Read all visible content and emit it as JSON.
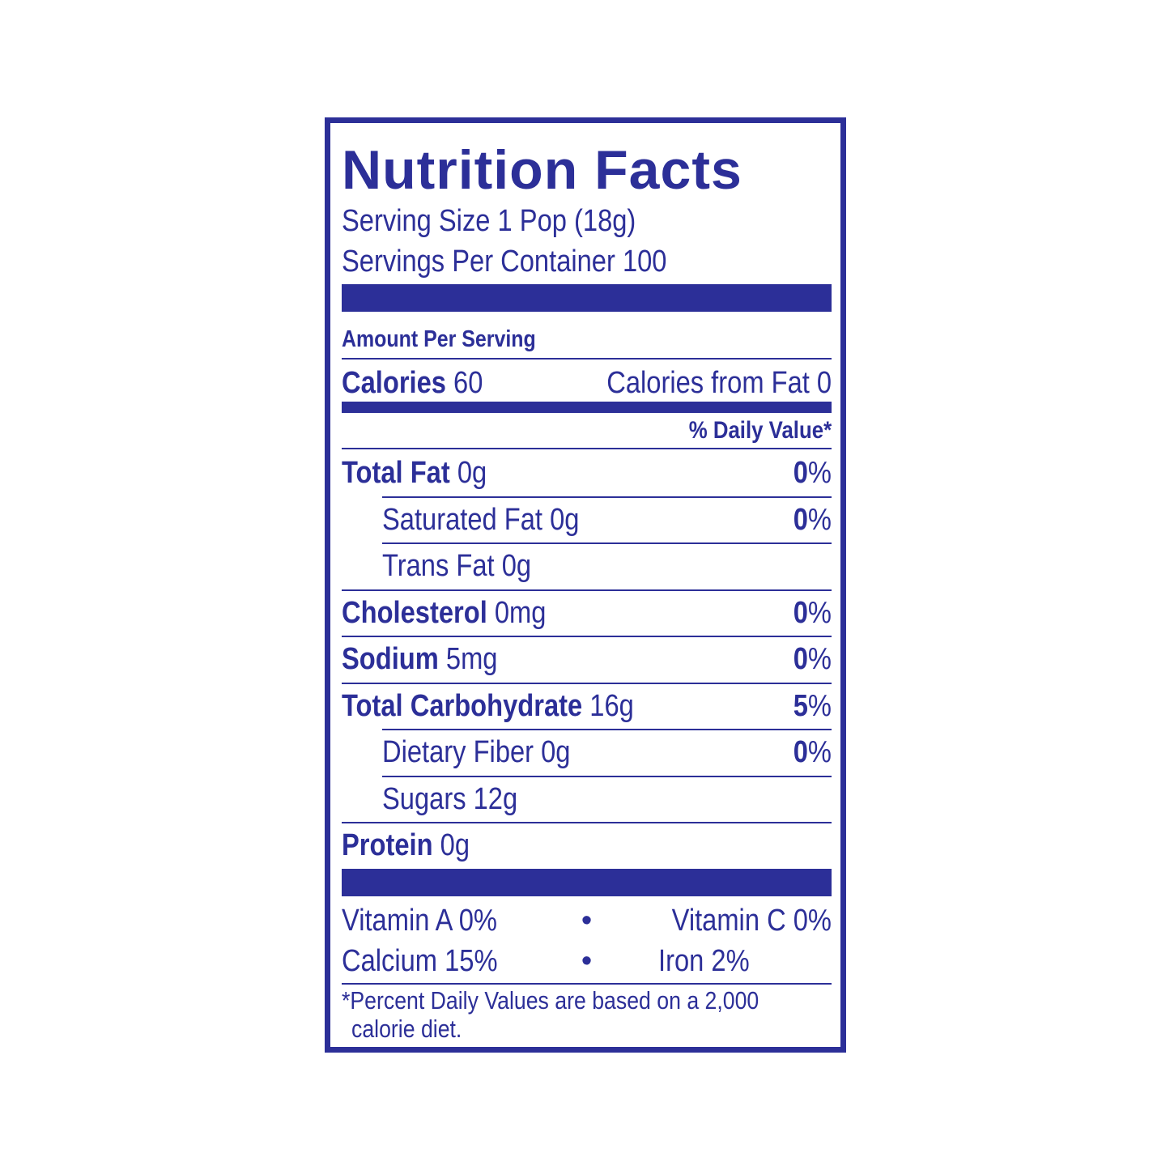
{
  "title": "Nutrition Facts",
  "serving_size": "Serving Size 1 Pop (18g)",
  "servings_per_container": "Servings Per Container 100",
  "amount_per_serving": "Amount Per Serving",
  "calories": {
    "label": "Calories",
    "value": "60",
    "from_fat": "Calories from Fat 0"
  },
  "daily_value_header": "% Daily Value*",
  "nutrients": [
    {
      "label": "Total Fat",
      "amount": "0g",
      "dv": "0%"
    },
    {
      "label": "Saturated Fat 0g",
      "amount": "",
      "dv": "0%"
    },
    {
      "label": "Trans Fat 0g",
      "amount": "",
      "dv": ""
    },
    {
      "label": "Cholesterol",
      "amount": "0mg",
      "dv": "0%"
    },
    {
      "label": "Sodium",
      "amount": "5mg",
      "dv": "0%"
    },
    {
      "label": "Total Carbohydrate",
      "amount": "16g",
      "dv": "5%"
    },
    {
      "label": "Dietary Fiber 0g",
      "amount": "",
      "dv": "0%"
    },
    {
      "label": "Sugars 12g",
      "amount": "",
      "dv": ""
    },
    {
      "label": "Protein",
      "amount": "0g",
      "dv": ""
    }
  ],
  "vitamins": [
    {
      "left": "Vitamin A 0%",
      "bullet": "•",
      "right": "Vitamin C 0%"
    },
    {
      "left": "Calcium 15%",
      "bullet": "•",
      "right": "Iron 2%"
    }
  ],
  "footnote": {
    "line1": "*Percent Daily Values are based on a 2,000",
    "line2": "calorie diet."
  },
  "colors": {
    "ink": "#2c2f98"
  }
}
